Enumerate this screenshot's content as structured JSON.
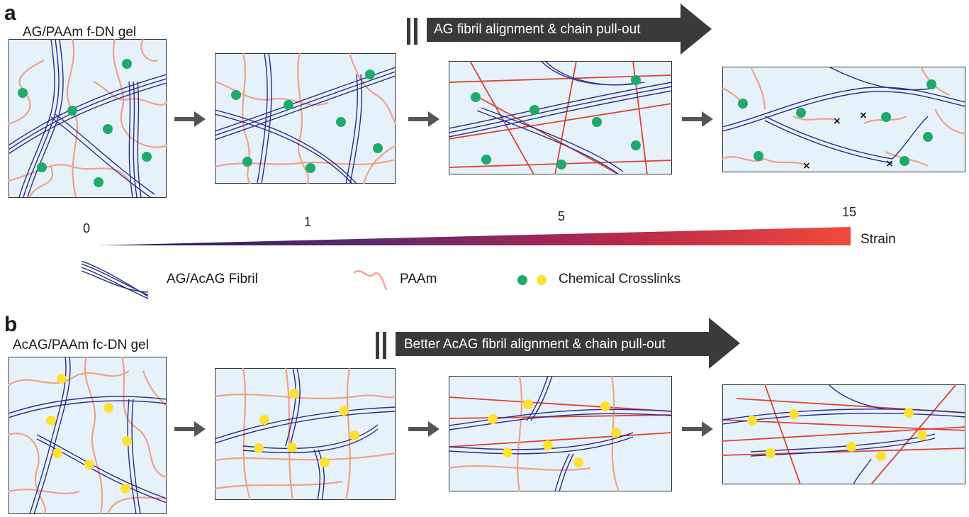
{
  "panel_a": {
    "letter": "a",
    "gel_label": "AG/PAAm f-DN gel",
    "banner": "AG fibril alignment & chain pull-out"
  },
  "panel_b": {
    "letter": "b",
    "gel_label": "AcAG/PAAm fc-DN gel",
    "banner": "Better AcAG fibril alignment & chain pull-out"
  },
  "strain_scale": {
    "ticks": [
      "0",
      "1",
      "5",
      "15"
    ],
    "label": "Strain",
    "gradient_colors": [
      "#1c1c5e",
      "#5a2a6e",
      "#b8284a",
      "#f04a3c"
    ]
  },
  "legend": {
    "fibril_label": "AG/AcAG Fibril",
    "paam_label": "PAAm",
    "crosslinks_label": "Chemical Crosslinks",
    "crosslink_colors": [
      "#1daa6a",
      "#fde030"
    ]
  },
  "colors": {
    "panel_bg": "#e6f2fb",
    "fibril": "#2a2a8c",
    "paam": "#f2a086",
    "paam_stretched": "#e0402e",
    "arrow": "#555555",
    "banner": "#3a3a3a"
  }
}
